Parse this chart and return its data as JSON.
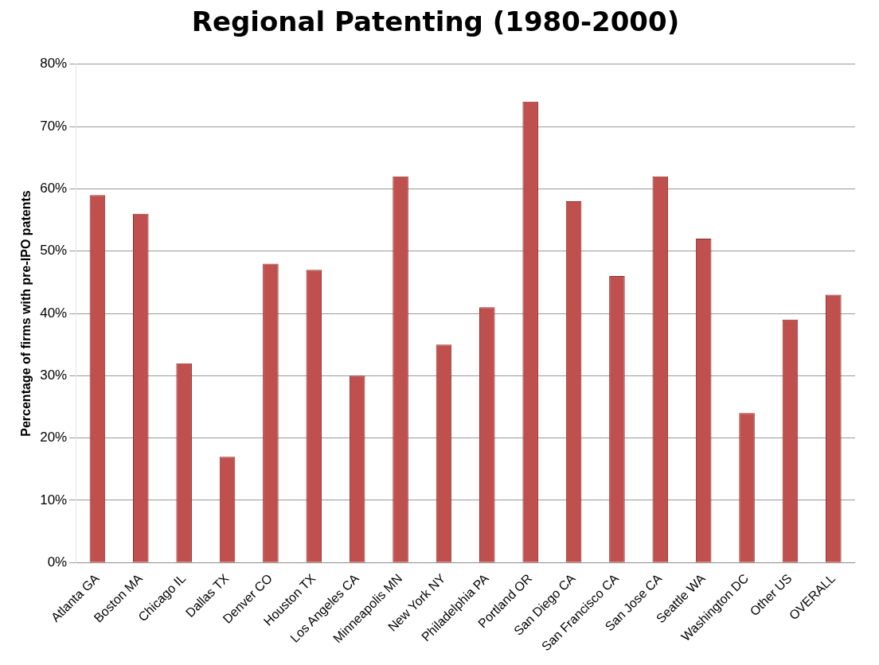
{
  "chart_data": {
    "type": "bar",
    "title": "Regional Patenting (1980-2000)",
    "ylabel": "Percentage of firms with pre-IPO patents",
    "categories": [
      "Atlanta GA",
      "Boston MA",
      "Chicago IL",
      "Dallas TX",
      "Denver CO",
      "Houston TX",
      "Los Angeles CA",
      "Minneapolis MN",
      "New York NY",
      "Philadelphia PA",
      "Portland OR",
      "San Diego CA",
      "San Francisco CA",
      "San Jose CA",
      "Seattle WA",
      "Washington DC",
      "Other US",
      "OVERALL"
    ],
    "values": [
      59,
      56,
      32,
      17,
      48,
      47,
      30,
      62,
      35,
      41,
      74,
      58,
      46,
      62,
      52,
      24,
      39,
      43
    ],
    "color": "#c0504d",
    "ylim": [
      0,
      80
    ],
    "yticks": [
      {
        "value": 0,
        "label": "0%"
      },
      {
        "value": 10,
        "label": "10%"
      },
      {
        "value": 20,
        "label": "20%"
      },
      {
        "value": 30,
        "label": "30%"
      },
      {
        "value": 40,
        "label": "40%"
      },
      {
        "value": 50,
        "label": "50%"
      },
      {
        "value": 60,
        "label": "60%"
      },
      {
        "value": 70,
        "label": "70%"
      },
      {
        "value": 80,
        "label": "80%"
      }
    ],
    "grid": "y",
    "legend": false
  }
}
